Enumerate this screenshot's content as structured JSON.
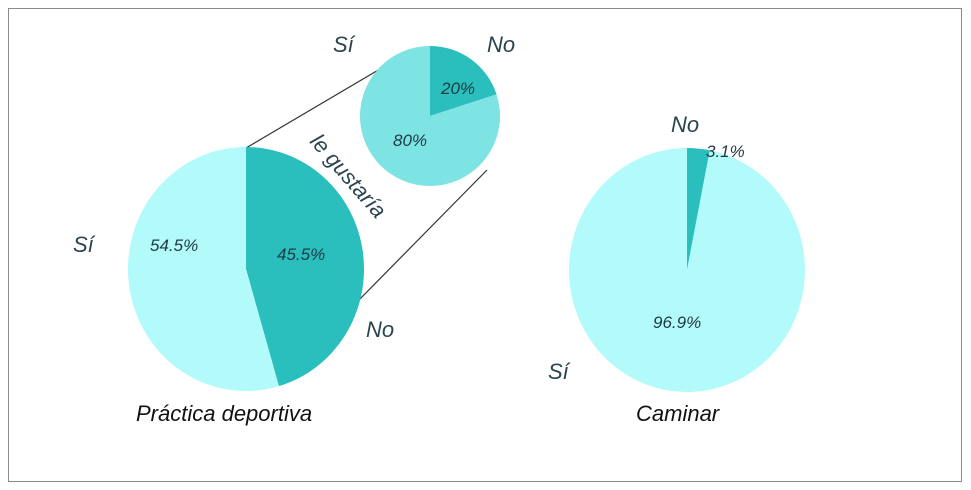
{
  "chart_data": [
    {
      "type": "pie",
      "title": "Práctica deportiva",
      "slices": [
        {
          "label": "Sí",
          "value": 54.5,
          "value_label": "54.5%",
          "color": "#b3fafa"
        },
        {
          "label": "No",
          "value": 45.5,
          "value_label": "45.5%",
          "color": "#2abfbd"
        }
      ],
      "breakdown": {
        "of_slice": "No",
        "label": "le gustaría",
        "slices": [
          {
            "label": "Sí",
            "value": 80,
            "value_label": "80%",
            "color": "#7de3e3"
          },
          {
            "label": "No",
            "value": 20,
            "value_label": "20%",
            "color": "#2abfbd"
          }
        ]
      }
    },
    {
      "type": "pie",
      "title": "Caminar",
      "slices": [
        {
          "label": "Sí",
          "value": 96.9,
          "value_label": "96.9%",
          "color": "#b3fafa"
        },
        {
          "label": "No",
          "value": 3.1,
          "value_label": "3.1%",
          "color": "#2abfbd"
        }
      ]
    }
  ]
}
